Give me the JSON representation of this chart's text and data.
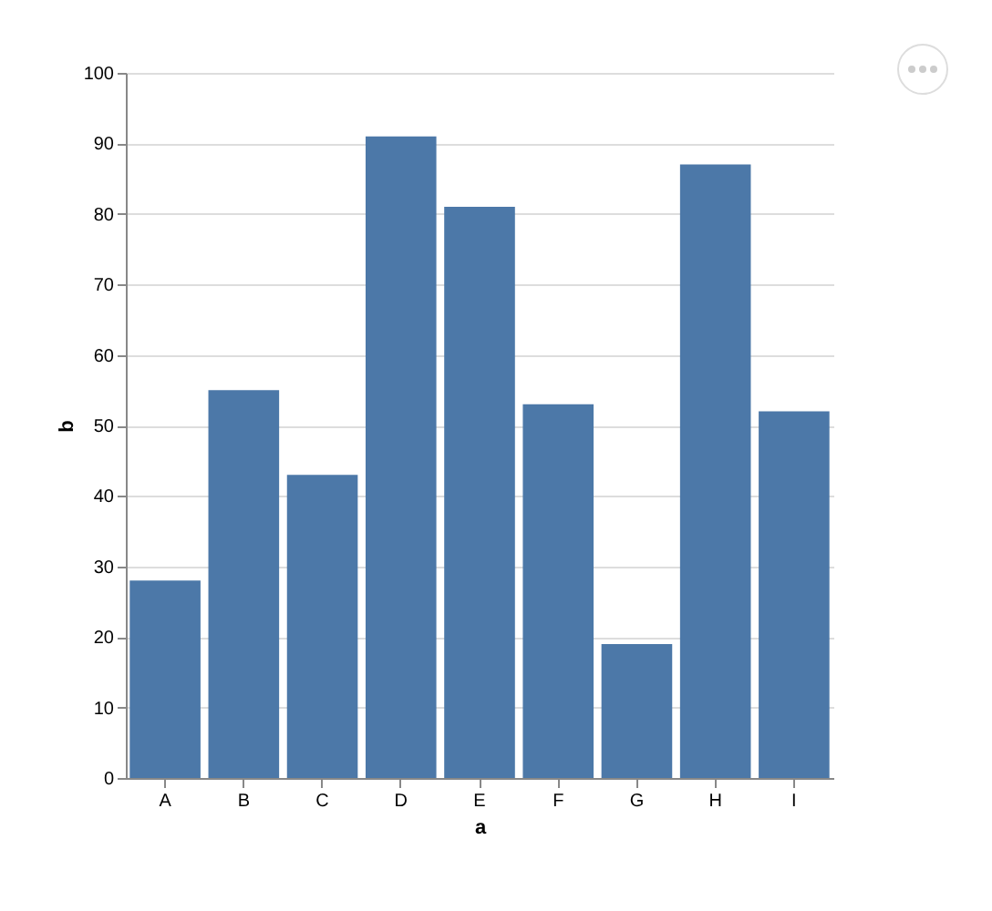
{
  "chart_data": {
    "type": "bar",
    "xlabel": "a",
    "ylabel": "b",
    "categories": [
      "A",
      "B",
      "C",
      "D",
      "E",
      "F",
      "G",
      "H",
      "I"
    ],
    "values": [
      28,
      55,
      43,
      91,
      81,
      53,
      19,
      87,
      52
    ],
    "color": "#4c78a8",
    "ylim": [
      0,
      100
    ],
    "yticks": [
      0,
      10,
      20,
      30,
      40,
      50,
      60,
      70,
      80,
      90,
      100
    ],
    "grid": "y"
  }
}
